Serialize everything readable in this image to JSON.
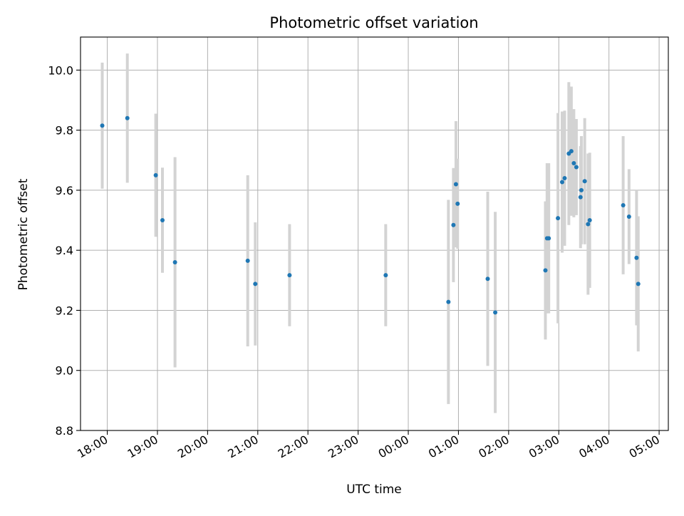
{
  "chart_data": {
    "type": "scatter",
    "title": "Photometric offset variation",
    "xlabel": "UTC time",
    "ylabel": "Photometric offset",
    "x_unit": "UTC",
    "x_ticks": [
      "18:00",
      "19:00",
      "20:00",
      "21:00",
      "22:00",
      "23:00",
      "00:00",
      "01:00",
      "02:00",
      "03:00",
      "04:00",
      "05:00"
    ],
    "y_ticks": [
      "8.8",
      "9.0",
      "9.2",
      "9.4",
      "9.6",
      "9.8",
      "10.0"
    ],
    "xlim": [
      "17:28",
      "05:11"
    ],
    "ylim": [
      8.8,
      10.11
    ],
    "grid": true,
    "legend": "none",
    "colors": {
      "marker": "#1f77b4",
      "errorbar": "#d3d3d3",
      "grid": "#b0b0b0"
    },
    "points": [
      {
        "x": "17:54",
        "y": 9.815,
        "err": 0.21
      },
      {
        "x": "18:24",
        "y": 9.84,
        "err": 0.215
      },
      {
        "x": "18:58",
        "y": 9.65,
        "err": 0.205
      },
      {
        "x": "19:06",
        "y": 9.5,
        "err": 0.175
      },
      {
        "x": "19:21",
        "y": 9.36,
        "err": 0.35
      },
      {
        "x": "20:48",
        "y": 9.365,
        "err": 0.285
      },
      {
        "x": "20:57",
        "y": 9.288,
        "err": 0.205
      },
      {
        "x": "21:38",
        "y": 9.317,
        "err": 0.17
      },
      {
        "x": "23:33",
        "y": 9.317,
        "err": 0.17
      },
      {
        "x": "00:48",
        "y": 9.228,
        "err": 0.34
      },
      {
        "x": "00:54",
        "y": 9.484,
        "err": 0.19
      },
      {
        "x": "00:57",
        "y": 9.62,
        "err": 0.21
      },
      {
        "x": "00:59",
        "y": 9.555,
        "err": 0.15
      },
      {
        "x": "01:35",
        "y": 9.305,
        "err": 0.29
      },
      {
        "x": "01:44",
        "y": 9.193,
        "err": 0.335
      },
      {
        "x": "02:44",
        "y": 9.333,
        "err": 0.23
      },
      {
        "x": "02:46",
        "y": 9.44,
        "err": 0.25
      },
      {
        "x": "02:48",
        "y": 9.44,
        "err": 0.25
      },
      {
        "x": "02:59",
        "y": 9.507,
        "err": 0.35
      },
      {
        "x": "03:04",
        "y": 9.627,
        "err": 0.235
      },
      {
        "x": "03:07",
        "y": 9.64,
        "err": 0.225
      },
      {
        "x": "03:12",
        "y": 9.722,
        "err": 0.238
      },
      {
        "x": "03:15",
        "y": 9.73,
        "err": 0.215
      },
      {
        "x": "03:18",
        "y": 9.69,
        "err": 0.18
      },
      {
        "x": "03:21",
        "y": 9.677,
        "err": 0.16
      },
      {
        "x": "03:26",
        "y": 9.577,
        "err": 0.17
      },
      {
        "x": "03:27",
        "y": 9.6,
        "err": 0.18
      },
      {
        "x": "03:31",
        "y": 9.63,
        "err": 0.21
      },
      {
        "x": "03:35",
        "y": 9.487,
        "err": 0.235
      },
      {
        "x": "03:37",
        "y": 9.5,
        "err": 0.225
      },
      {
        "x": "04:17",
        "y": 9.55,
        "err": 0.23
      },
      {
        "x": "04:24",
        "y": 9.512,
        "err": 0.158
      },
      {
        "x": "04:33",
        "y": 9.375,
        "err": 0.225
      },
      {
        "x": "04:35",
        "y": 9.288,
        "err": 0.225
      }
    ]
  }
}
